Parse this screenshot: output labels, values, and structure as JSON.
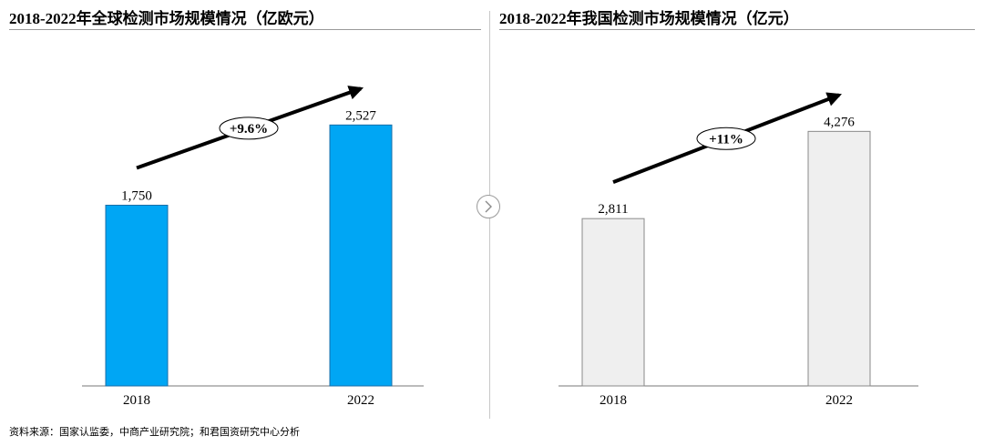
{
  "panels": [
    {
      "title": "2018-2022年全球检测市场规模情况（亿欧元）",
      "growth_label": "+9.6%",
      "bar_color": "#00A6F4",
      "bar_stroke": "#1A6FA8"
    },
    {
      "title": "2018-2022年我国检测市场规模情况（亿元）",
      "growth_label": "+11%",
      "bar_color": "#EFEFEF",
      "bar_stroke": "#8A8A8A"
    }
  ],
  "chart_data": [
    {
      "type": "bar",
      "title": "2018-2022年全球检测市场规模情况（亿欧元）",
      "categories": [
        "2018",
        "2022"
      ],
      "values": [
        1750,
        2527
      ],
      "data_labels": [
        "1,750",
        "2,527"
      ],
      "annotation": "+9.6%",
      "ylim": [
        0,
        2900
      ]
    },
    {
      "type": "bar",
      "title": "2018-2022年我国检测市场规模情况（亿元）",
      "categories": [
        "2018",
        "2022"
      ],
      "values": [
        2811,
        4276
      ],
      "data_labels": [
        "2,811",
        "4,276"
      ],
      "annotation": "+11%",
      "ylim": [
        0,
        5000
      ]
    }
  ],
  "source_text": "资料来源：国家认监委，中商产业研究院；和君国资研究中心分析",
  "next_icon": "chevron-right-icon"
}
